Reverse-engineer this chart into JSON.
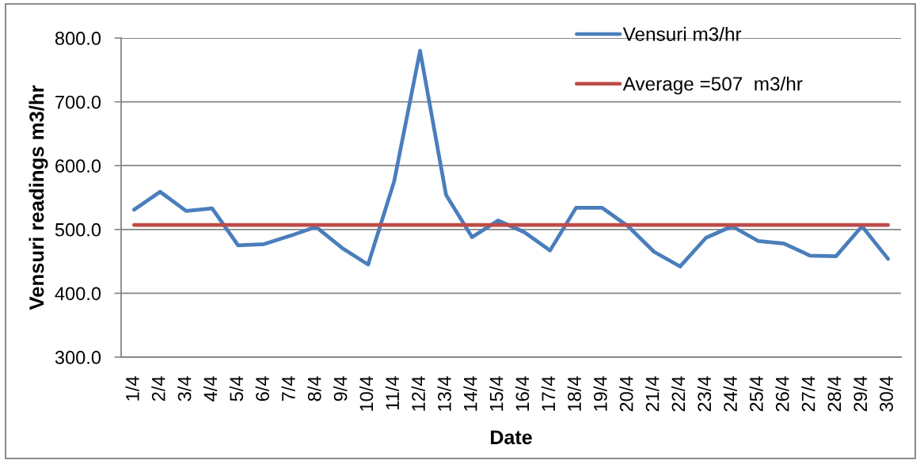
{
  "chart_data": {
    "type": "line",
    "xlabel": "Date",
    "ylabel": "Vensuri readings m3/hr",
    "categories": [
      "1/4",
      "2/4",
      "3/4",
      "4/4",
      "5/4",
      "6/4",
      "7/4",
      "8/4",
      "9/4",
      "10/4",
      "11/4",
      "12/4",
      "13/4",
      "14/4",
      "15/4",
      "16/4",
      "17/4",
      "18/4",
      "19/4",
      "20/4",
      "21/4",
      "22/4",
      "23/4",
      "24/4",
      "25/4",
      "26/4",
      "27/4",
      "28/4",
      "29/4",
      "30/4"
    ],
    "series": [
      {
        "name": "Vensuri m3/hr",
        "color": "#4a7ebb",
        "values": [
          531,
          559,
          529,
          533,
          475,
          477,
          490,
          504,
          471,
          445,
          575,
          780,
          554,
          488,
          514,
          496,
          467,
          534,
          534,
          505,
          465,
          442,
          487,
          505,
          482,
          478,
          459,
          458,
          505,
          454
        ]
      },
      {
        "name": "Average =507  m3/hr",
        "color": "#be4b48",
        "values": [
          507,
          507,
          507,
          507,
          507,
          507,
          507,
          507,
          507,
          507,
          507,
          507,
          507,
          507,
          507,
          507,
          507,
          507,
          507,
          507,
          507,
          507,
          507,
          507,
          507,
          507,
          507,
          507,
          507,
          507
        ]
      }
    ],
    "ylim": [
      300,
      800
    ],
    "yticks": [
      {
        "value": 300,
        "label": "300.0"
      },
      {
        "value": 400,
        "label": "400.0"
      },
      {
        "value": 500,
        "label": "500.0"
      },
      {
        "value": 600,
        "label": "600.0"
      },
      {
        "value": 700,
        "label": "700.0"
      },
      {
        "value": 800,
        "label": "800.0"
      }
    ],
    "grid": "y",
    "legend": "top right",
    "line_style": "solid"
  }
}
